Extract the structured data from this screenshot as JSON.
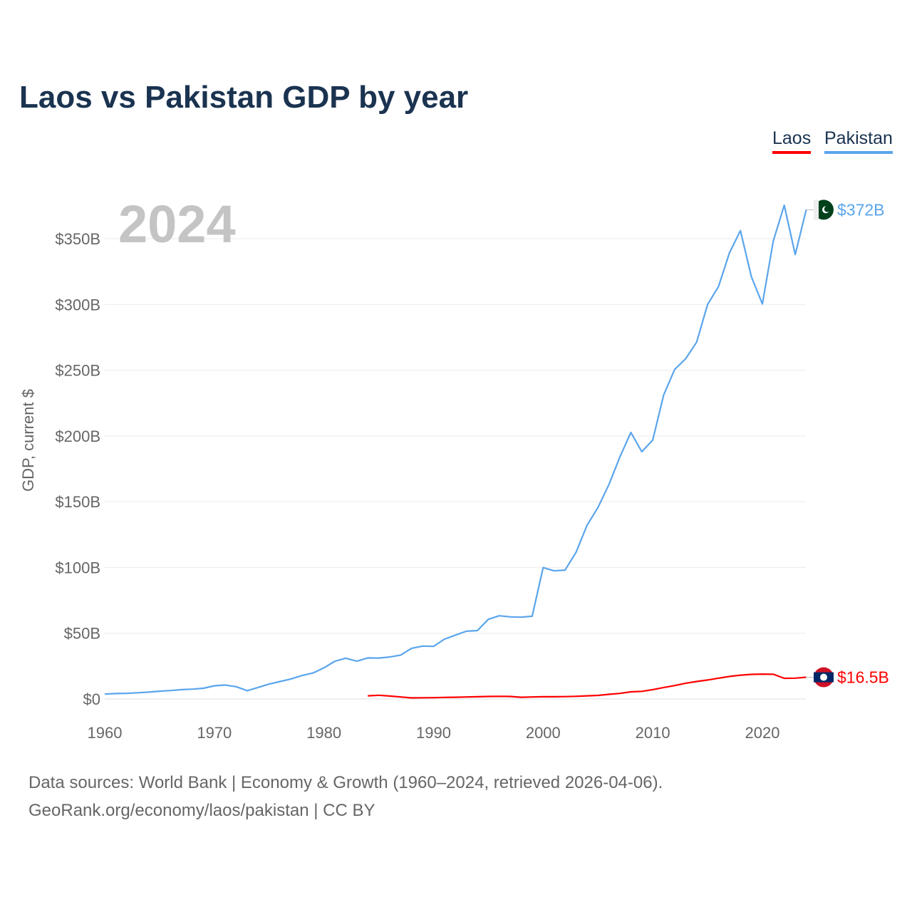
{
  "title": "Laos vs Pakistan GDP by year",
  "year_label": "2024",
  "footer": {
    "line1": "Data sources: World Bank | Economy & Growth (1960–2024, retrieved 2026-04-06).",
    "line2": "GeoRank.org/economy/laos/pakistan | CC BY"
  },
  "chart_data": {
    "type": "line",
    "title": "Laos vs Pakistan GDP by year",
    "xlabel": "",
    "ylabel": "GDP, current $",
    "xlim": [
      1960,
      2024
    ],
    "ylim": [
      0,
      350
    ],
    "xticks": [
      1960,
      1970,
      1980,
      1990,
      2000,
      2010,
      2020
    ],
    "yticks": [
      {
        "v": 0,
        "label": "$0"
      },
      {
        "v": 50,
        "label": "$50B"
      },
      {
        "v": 100,
        "label": "$100B"
      },
      {
        "v": 150,
        "label": "$150B"
      },
      {
        "v": 200,
        "label": "$200B"
      },
      {
        "v": 250,
        "label": "$250B"
      },
      {
        "v": 300,
        "label": "$300B"
      },
      {
        "v": 350,
        "label": "$350B"
      }
    ],
    "grid": true,
    "legend": "top-right",
    "series": [
      {
        "name": "Laos",
        "color": "#ff0000",
        "end_label": "$16.5B",
        "start": 1984,
        "values": [
          2.4,
          2.8,
          2.2,
          1.5,
          0.8,
          0.9,
          1.0,
          1.2,
          1.3,
          1.5,
          1.7,
          1.9,
          2.0,
          1.9,
          1.3,
          1.5,
          1.7,
          1.7,
          1.8,
          2.0,
          2.4,
          2.7,
          3.5,
          4.2,
          5.4,
          5.8,
          7.1,
          8.7,
          10.2,
          12.0,
          13.3,
          14.4,
          15.8,
          17.1,
          18.1,
          18.7,
          18.9,
          18.8,
          15.7,
          15.8,
          16.5
        ]
      },
      {
        "name": "Pakistan",
        "color": "#5aa5ec",
        "end_label": "$372B",
        "start": 1960,
        "values": [
          3.7,
          4.1,
          4.3,
          4.7,
          5.2,
          5.9,
          6.4,
          7.1,
          7.5,
          8.1,
          10.0,
          10.6,
          9.3,
          6.3,
          8.8,
          11.3,
          13.3,
          15.2,
          17.8,
          19.7,
          23.7,
          28.7,
          31.0,
          28.7,
          31.2,
          31.1,
          31.9,
          33.4,
          38.5,
          40.2,
          40.0,
          45.5,
          48.6,
          51.5,
          52.0,
          60.6,
          63.3,
          62.4,
          62.2,
          62.9,
          99.9,
          97.4,
          98.0,
          111.5,
          132.1,
          145.6,
          163.0,
          184.0,
          202.7,
          188.0,
          196.9,
          231.2,
          250.6,
          258.7,
          271.3,
          300.0,
          313.6,
          339.2,
          356.1,
          321.0,
          300.4,
          348.5,
          375.4,
          337.9,
          372.0
        ]
      }
    ]
  }
}
